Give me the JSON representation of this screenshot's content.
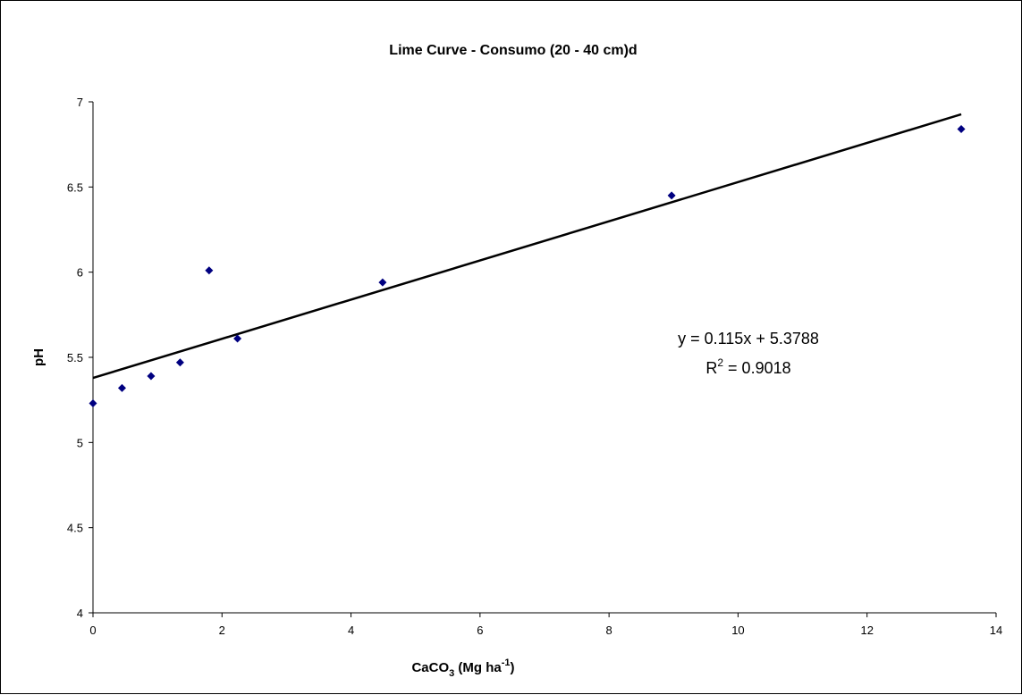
{
  "chart_data": {
    "type": "scatter",
    "title": "Lime Curve - Consumo (20 - 40 cm)d",
    "xlabel": {
      "prefix": "CaCO",
      "sub": "3",
      "middle": " (Mg ha",
      "sup": "-1",
      "suffix": ")"
    },
    "ylabel": "pH",
    "xlim": [
      0,
      14
    ],
    "ylim": [
      4,
      7
    ],
    "x_ticks": [
      "0",
      "2",
      "4",
      "6",
      "8",
      "10",
      "12",
      "14"
    ],
    "y_ticks": [
      "4",
      "4.5",
      "5",
      "5.5",
      "6",
      "6.5",
      "7"
    ],
    "grid": false,
    "legend": "none",
    "marker_color": "#000080",
    "points": [
      {
        "x": 0,
        "y": 5.23
      },
      {
        "x": 0.45,
        "y": 5.32
      },
      {
        "x": 0.9,
        "y": 5.39
      },
      {
        "x": 1.35,
        "y": 5.47
      },
      {
        "x": 1.8,
        "y": 6.01
      },
      {
        "x": 2.24,
        "y": 5.61
      },
      {
        "x": 4.49,
        "y": 5.94
      },
      {
        "x": 8.97,
        "y": 6.45
      },
      {
        "x": 13.46,
        "y": 6.84
      }
    ],
    "trendline": {
      "slope": 0.115,
      "intercept": 5.3788,
      "x_range": [
        0,
        13.46
      ],
      "color": "#000000"
    },
    "equation": "y = 0.115x + 5.3788",
    "r2": {
      "prefix": "R",
      "sup": "2",
      "suffix": " = 0.9018"
    }
  }
}
